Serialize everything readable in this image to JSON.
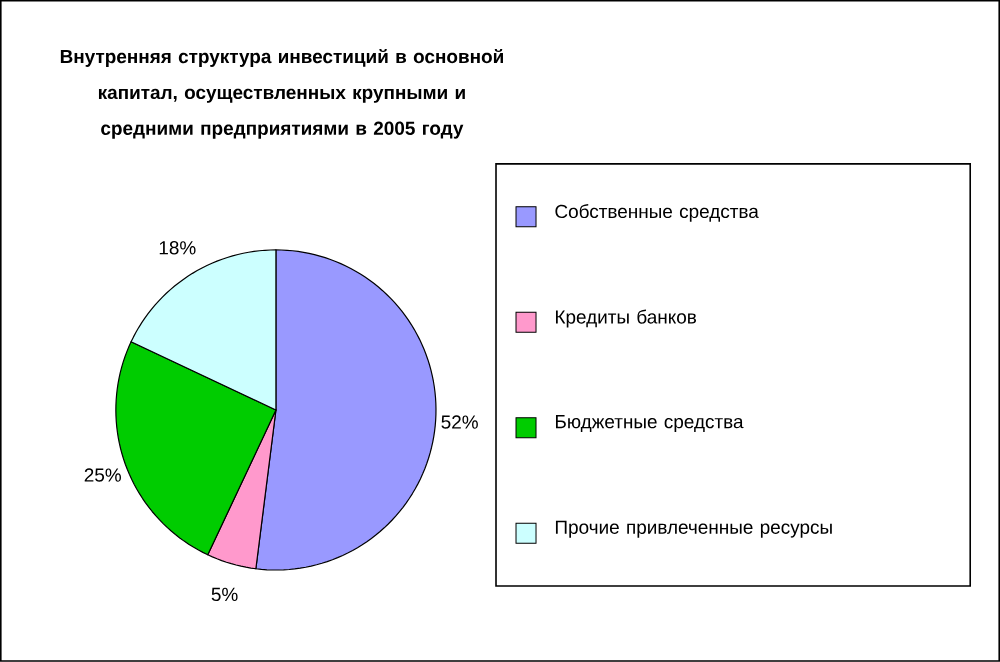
{
  "chart_data": {
    "type": "pie",
    "title": "Внутренняя структура инвестиций в основной капитал, осуществленных крупными и средними предприятиями в 2005 году",
    "categories": [
      "Собственные средства",
      "Кредиты банков",
      "Бюджетные средства",
      "Прочие привлеченные ресурсы"
    ],
    "values": [
      52,
      5,
      25,
      18
    ],
    "colors": [
      "#9999ff",
      "#ff99cc",
      "#00cc00",
      "#ccffff"
    ],
    "value_labels": [
      "52%",
      "5%",
      "25%",
      "18%"
    ],
    "legend": "right"
  }
}
